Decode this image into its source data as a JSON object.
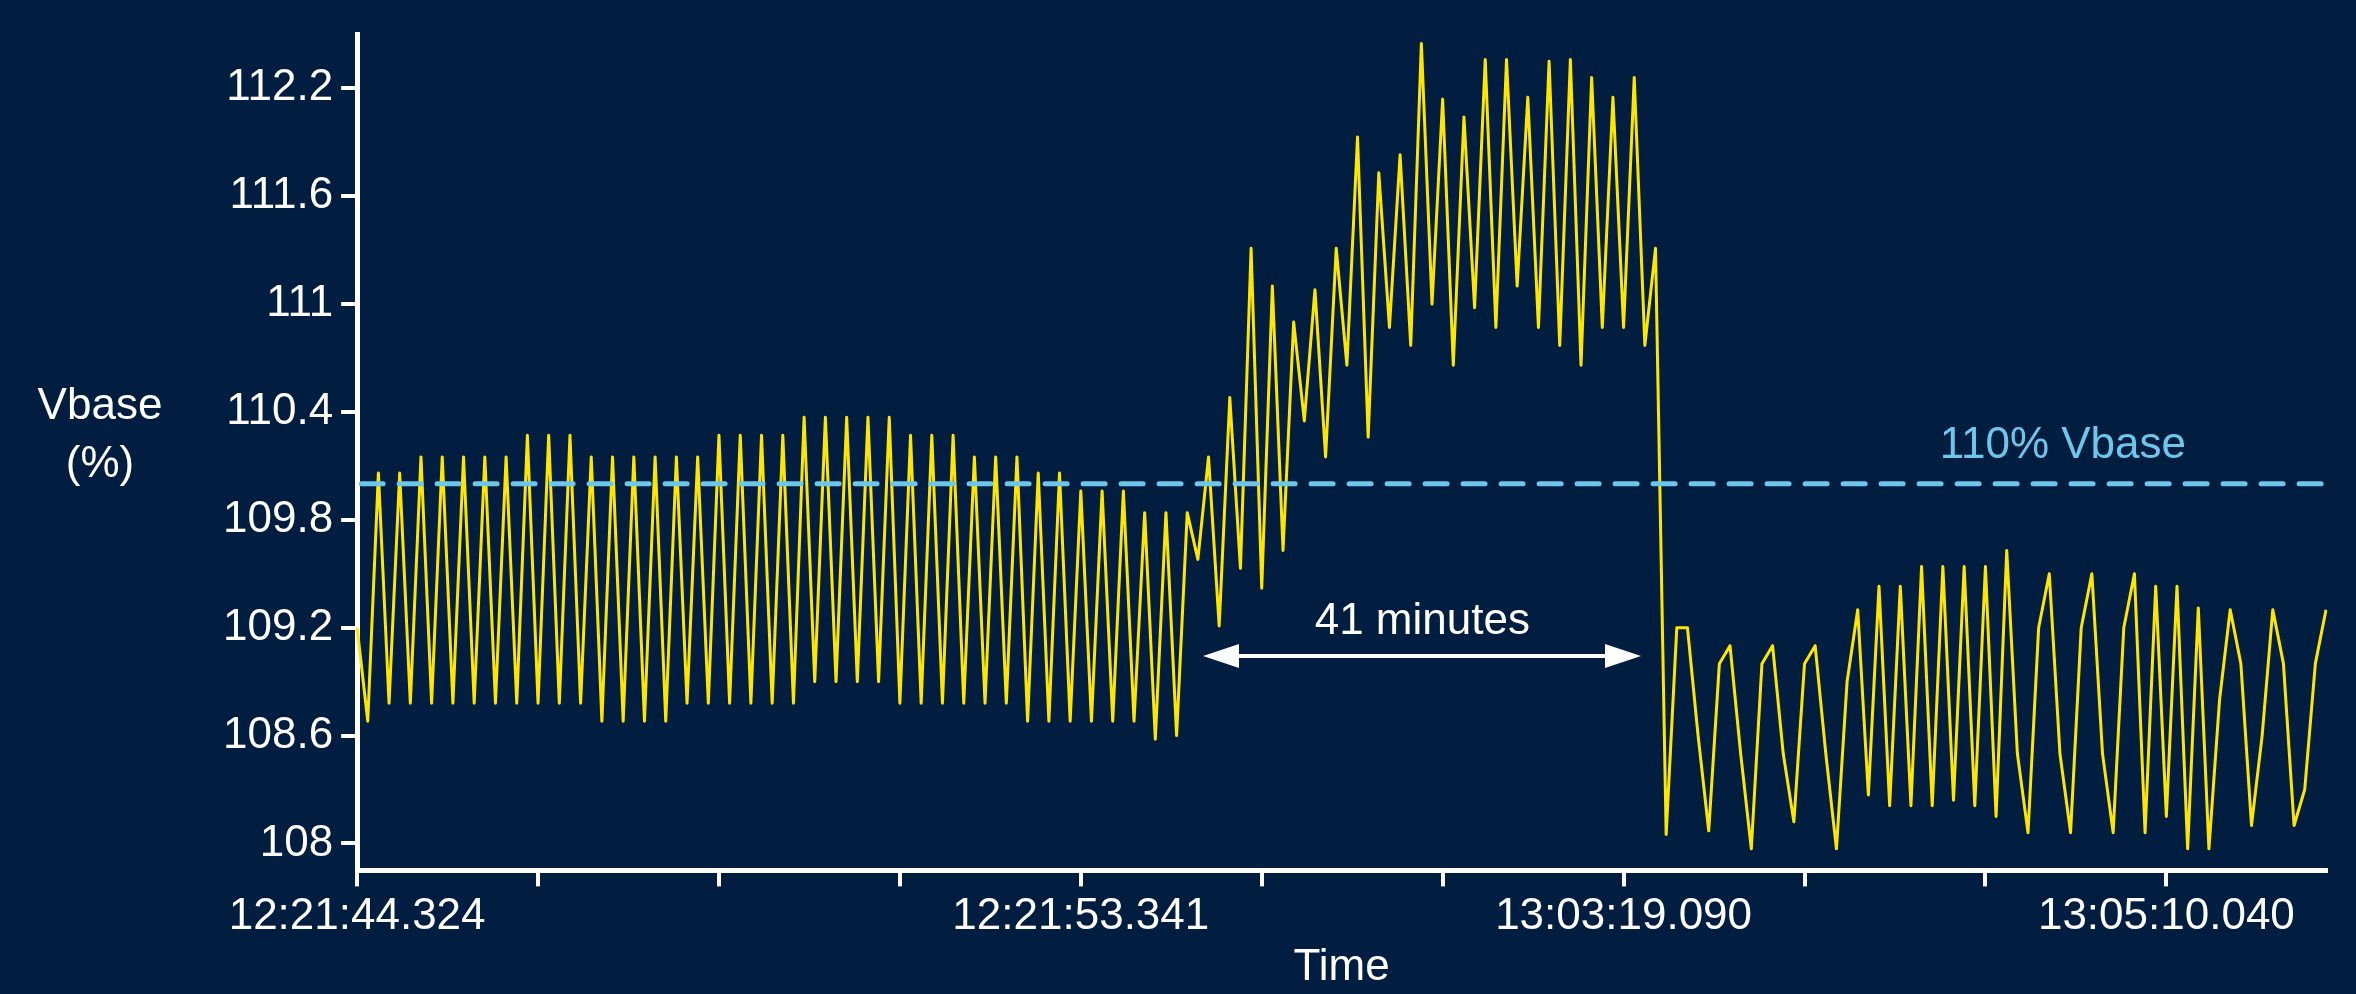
{
  "chart_data": {
    "type": "line",
    "xlabel": "Time",
    "ylabel": "Vbase (%)",
    "categories": [
      "12:21:44.324",
      null,
      null,
      null,
      null,
      null,
      null,
      null,
      null,
      null,
      null,
      null,
      null,
      null,
      null,
      null,
      null,
      null,
      null,
      null,
      null,
      null,
      null,
      null,
      null,
      null,
      null,
      null,
      null,
      null,
      null,
      null,
      null,
      null,
      null,
      null,
      null,
      null,
      null,
      null,
      null,
      null,
      null,
      null,
      null,
      null,
      null,
      null,
      null,
      null,
      null,
      null,
      null,
      null,
      null,
      null,
      null,
      null,
      null,
      null,
      null,
      null,
      null,
      null,
      null,
      null,
      null,
      null,
      "12:21:53.341",
      null,
      null,
      null,
      null,
      null,
      null,
      null,
      null,
      null,
      null,
      null,
      null,
      null,
      null,
      null,
      null,
      null,
      null,
      null,
      null,
      null,
      null,
      null,
      null,
      null,
      null,
      null,
      null,
      null,
      null,
      null,
      null,
      null,
      null,
      null,
      null,
      null,
      null,
      null,
      null,
      null,
      null,
      null,
      null,
      null,
      null,
      null,
      null,
      null,
      null,
      "13:03:19.090",
      null,
      null,
      null,
      null,
      null,
      null,
      null,
      null,
      null,
      null,
      null,
      null,
      null,
      null,
      null,
      null,
      null,
      null,
      null,
      null,
      null,
      null,
      null,
      null,
      null,
      null,
      null,
      null,
      null,
      null,
      null,
      null,
      null,
      null,
      null,
      null,
      null,
      null,
      null,
      null,
      null,
      null,
      null,
      null,
      null,
      null,
      null,
      null,
      null,
      null,
      "13:05:10.040",
      null,
      null,
      null,
      null,
      null,
      null,
      null,
      null,
      null,
      null,
      null,
      null,
      null,
      null,
      null
    ],
    "series": [
      {
        "color": "#ffe600",
        "values": [
          109.2,
          108.68,
          110.06,
          108.78,
          110.06,
          108.78,
          110.15,
          108.78,
          110.15,
          108.78,
          110.15,
          108.78,
          110.15,
          108.78,
          110.15,
          108.78,
          110.27,
          108.78,
          110.27,
          108.78,
          110.27,
          108.78,
          110.15,
          108.68,
          110.15,
          108.68,
          110.15,
          108.68,
          110.15,
          108.68,
          110.15,
          108.78,
          110.15,
          108.78,
          110.27,
          108.78,
          110.27,
          108.78,
          110.27,
          108.78,
          110.27,
          108.78,
          110.37,
          108.9,
          110.37,
          108.9,
          110.37,
          108.9,
          110.37,
          108.9,
          110.37,
          108.78,
          110.27,
          108.78,
          110.27,
          108.78,
          110.27,
          108.78,
          110.15,
          108.78,
          110.15,
          108.78,
          110.15,
          108.68,
          110.06,
          108.68,
          110.06,
          108.68,
          109.96,
          108.68,
          109.96,
          108.68,
          109.96,
          108.68,
          109.84,
          108.58,
          109.84,
          108.6,
          109.84,
          109.58,
          110.15,
          109.21,
          110.48,
          109.53,
          111.31,
          109.42,
          111.1,
          109.63,
          110.9,
          110.35,
          111.08,
          110.15,
          111.31,
          110.66,
          111.93,
          110.26,
          111.73,
          110.87,
          111.83,
          110.77,
          112.45,
          111.0,
          112.14,
          110.66,
          112.04,
          110.98,
          112.36,
          110.87,
          112.36,
          111.1,
          112.15,
          110.87,
          112.35,
          110.77,
          112.36,
          110.66,
          112.26,
          110.87,
          112.15,
          110.87,
          112.26,
          110.77,
          111.31,
          108.05,
          109.2,
          109.2,
          108.6,
          108.07,
          109.0,
          109.1,
          108.5,
          107.97,
          109.0,
          109.1,
          108.5,
          108.12,
          109.0,
          109.1,
          108.5,
          107.97,
          108.9,
          109.3,
          108.27,
          109.43,
          108.21,
          109.43,
          108.21,
          109.54,
          108.21,
          109.54,
          108.24,
          109.54,
          108.21,
          109.54,
          108.15,
          109.63,
          108.5,
          108.06,
          109.2,
          109.5,
          108.5,
          108.06,
          109.2,
          109.5,
          108.5,
          108.06,
          109.2,
          109.5,
          108.06,
          109.43,
          108.15,
          109.43,
          107.97,
          109.31,
          107.97,
          108.8,
          109.3,
          109.0,
          108.1,
          108.6,
          109.3,
          109.0,
          108.1,
          108.3,
          109.0,
          109.3
        ]
      }
    ],
    "ylim": [
      107.85,
      112.5
    ],
    "yticks": [
      108,
      108.6,
      109.2,
      109.8,
      110.4,
      111,
      111.6,
      112.2
    ],
    "ref_lines": [
      {
        "axis": "y",
        "value": 110,
        "label": "110% Vbase",
        "color": "#6ec6ea",
        "line_style": "dashed"
      }
    ],
    "annotations": [
      "41 minutes"
    ],
    "grid": false,
    "marker": "none",
    "line_style": "solid"
  }
}
